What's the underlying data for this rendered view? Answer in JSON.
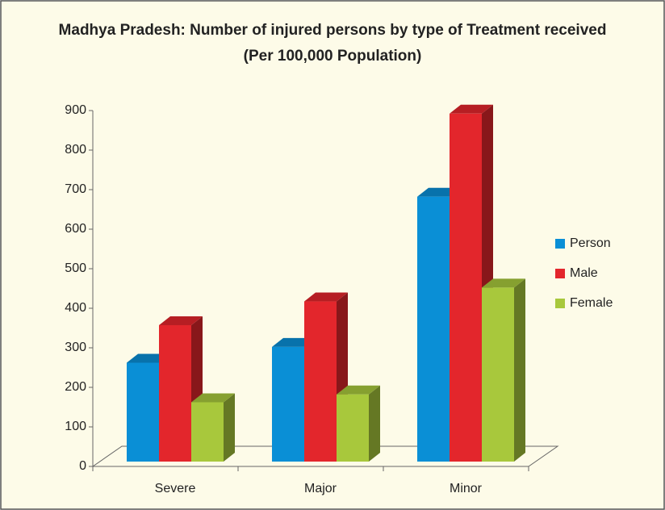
{
  "chart_data": {
    "type": "bar3d",
    "title": "Madhya Pradesh: Number of injured persons by type of Treatment received",
    "subtitle": "(Per 100,000 Population)",
    "categories": [
      "Severe",
      "Major",
      "Minor"
    ],
    "series": [
      {
        "name": "Person",
        "color": "#0a8fd6",
        "values": [
          250,
          290,
          670
        ]
      },
      {
        "name": "Male",
        "color": "#e3262c",
        "values": [
          345,
          405,
          880
        ]
      },
      {
        "name": "Female",
        "color": "#a8c83c",
        "values": [
          150,
          170,
          440
        ]
      }
    ],
    "ylim": [
      0,
      900
    ],
    "yticks": [
      0,
      100,
      200,
      300,
      400,
      500,
      600,
      700,
      800,
      900
    ],
    "legend": "right"
  }
}
